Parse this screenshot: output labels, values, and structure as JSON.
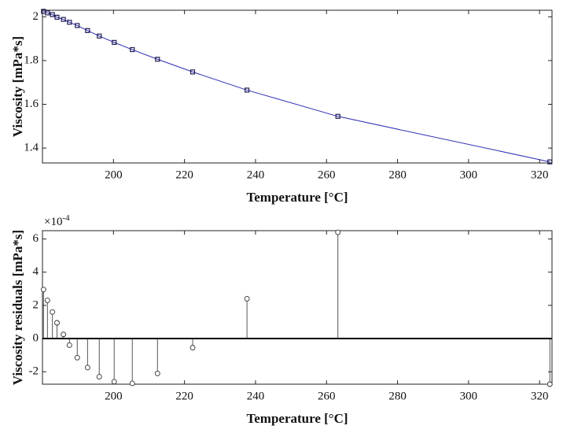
{
  "chart_data": [
    {
      "type": "line",
      "xlabel": "Temperature [°C]",
      "ylabel": "Viscosity [mPa*s]",
      "x": [
        180.3,
        181.4,
        182.8,
        184.1,
        185.9,
        187.6,
        189.8,
        192.7,
        196.0,
        200.2,
        205.3,
        212.4,
        222.3,
        237.6,
        263.2,
        322.9
      ],
      "values": [
        2.025,
        2.018,
        2.01,
        1.998,
        1.988,
        1.975,
        1.96,
        1.937,
        1.912,
        1.883,
        1.85,
        1.806,
        1.748,
        1.665,
        1.545,
        1.337
      ],
      "color": "#2d2db4",
      "marker_color": "#1c1c50",
      "xlim": [
        180,
        323.5
      ],
      "ylim": [
        1.332,
        2.03
      ],
      "xticks": [
        200,
        220,
        240,
        260,
        280,
        300,
        320
      ],
      "yticks": [
        1.4,
        1.6,
        1.8,
        2
      ]
    },
    {
      "type": "stem",
      "xlabel": "Temperature [°C]",
      "ylabel": "Viscosity residuals [mPa*s]",
      "offset_text": "×10",
      "offset_exponent": "-4",
      "x": [
        180.3,
        181.4,
        182.8,
        184.1,
        185.9,
        187.6,
        189.8,
        192.7,
        196.0,
        200.2,
        205.3,
        212.4,
        222.3,
        237.6,
        263.2,
        322.9
      ],
      "values": [
        2.95,
        2.3,
        1.6,
        0.95,
        0.25,
        -0.4,
        -1.15,
        -1.75,
        -2.3,
        -2.6,
        -2.7,
        -2.1,
        -0.55,
        2.4,
        6.4,
        -2.75
      ],
      "color": "#555555",
      "xlim": [
        180,
        323.5
      ],
      "ylim": [
        -2.75,
        6.5
      ],
      "xticks": [
        200,
        220,
        240,
        260,
        280,
        300,
        320
      ],
      "yticks": [
        -2,
        0,
        2,
        4,
        6
      ]
    }
  ]
}
